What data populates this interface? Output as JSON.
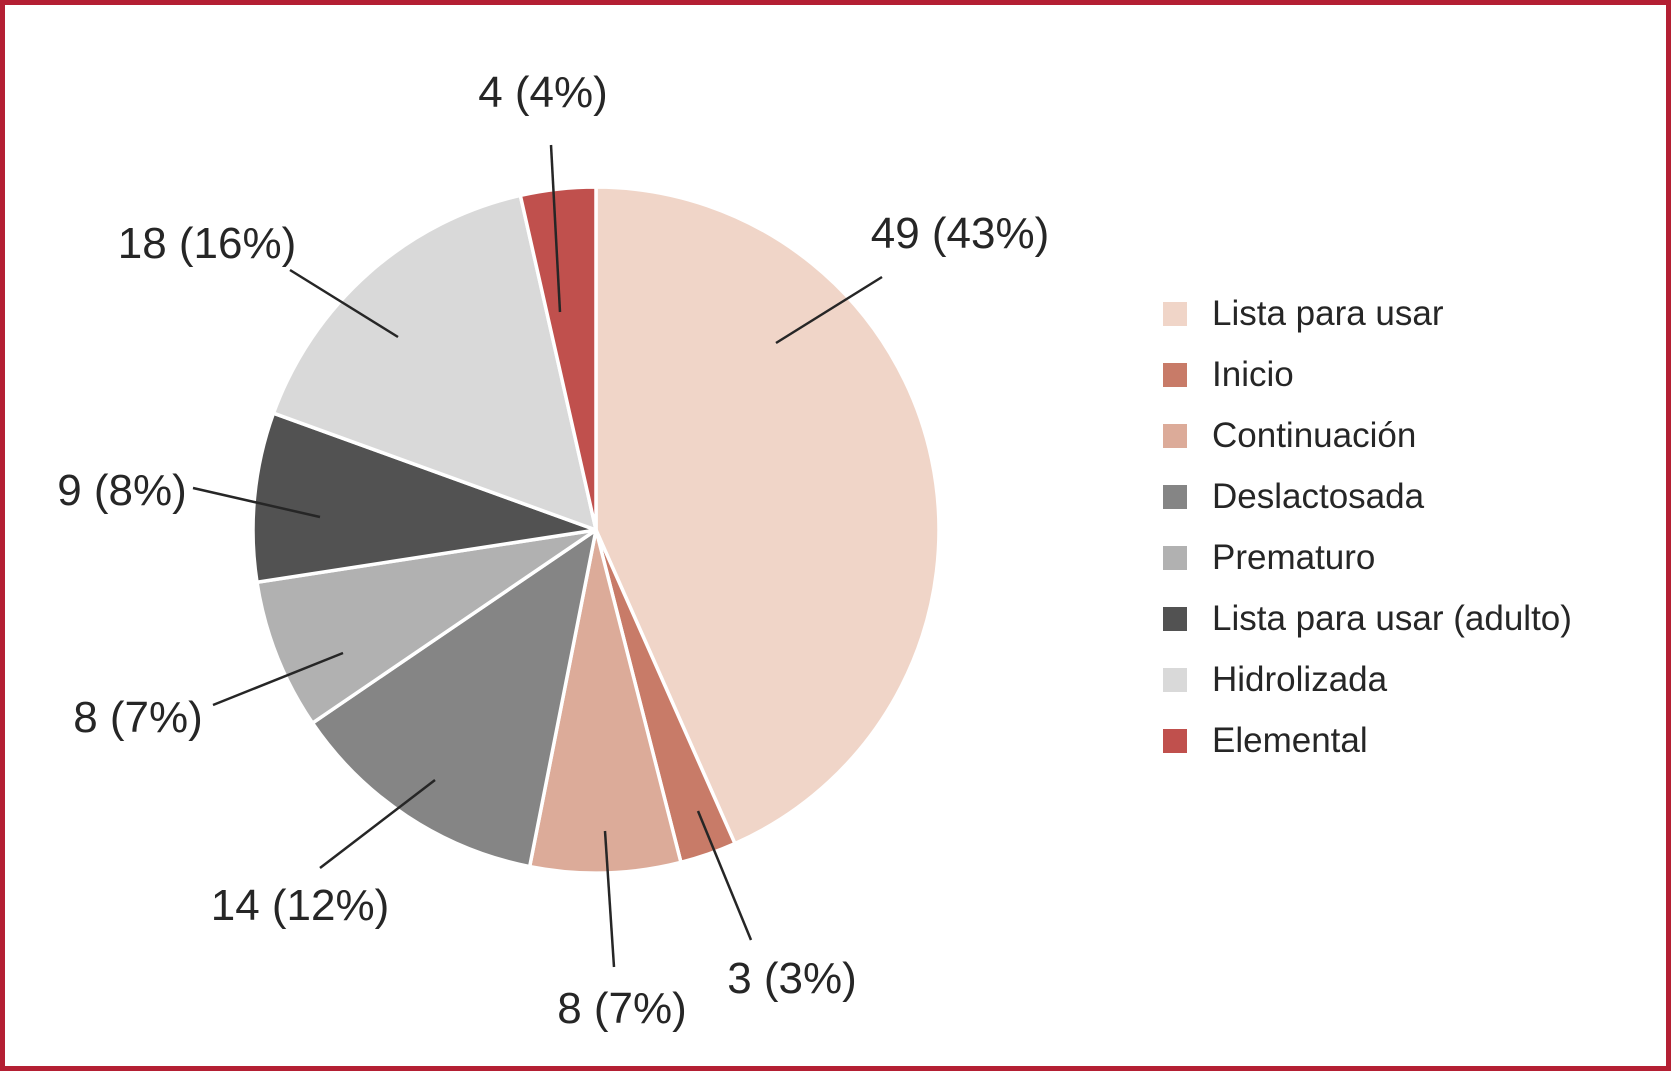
{
  "frame": {
    "border_color": "#b41f33",
    "background": "#ffffff",
    "text_color": "#262626"
  },
  "chart_data": {
    "type": "pie",
    "title": "",
    "total": 113,
    "start_angle_deg": 0,
    "direction": "clockwise",
    "legend_position": "right",
    "grid": false,
    "slices": [
      {
        "name": "Lista para usar",
        "value": 49,
        "pct": 43,
        "label": "49 (43%)",
        "color": "#f0d5c8"
      },
      {
        "name": "Inicio",
        "value": 3,
        "pct": 3,
        "label": "3 (3%)",
        "color": "#c87b68"
      },
      {
        "name": "Continuación",
        "value": 8,
        "pct": 7,
        "label": "8 (7%)",
        "color": "#dcab99"
      },
      {
        "name": "Deslactosada",
        "value": 14,
        "pct": 12,
        "label": "14 (12%)",
        "color": "#858585"
      },
      {
        "name": "Prematuro",
        "value": 8,
        "pct": 7,
        "label": "8 (7%)",
        "color": "#b1b1b1"
      },
      {
        "name": "Lista para usar (adulto)",
        "value": 9,
        "pct": 8,
        "label": "9 (8%)",
        "color": "#525252"
      },
      {
        "name": "Hidrolizada",
        "value": 18,
        "pct": 16,
        "label": "18 (16%)",
        "color": "#d9d9d9"
      },
      {
        "name": "Elemental",
        "value": 4,
        "pct": 4,
        "label": "4 (4%)",
        "color": "#c0504d"
      }
    ]
  }
}
